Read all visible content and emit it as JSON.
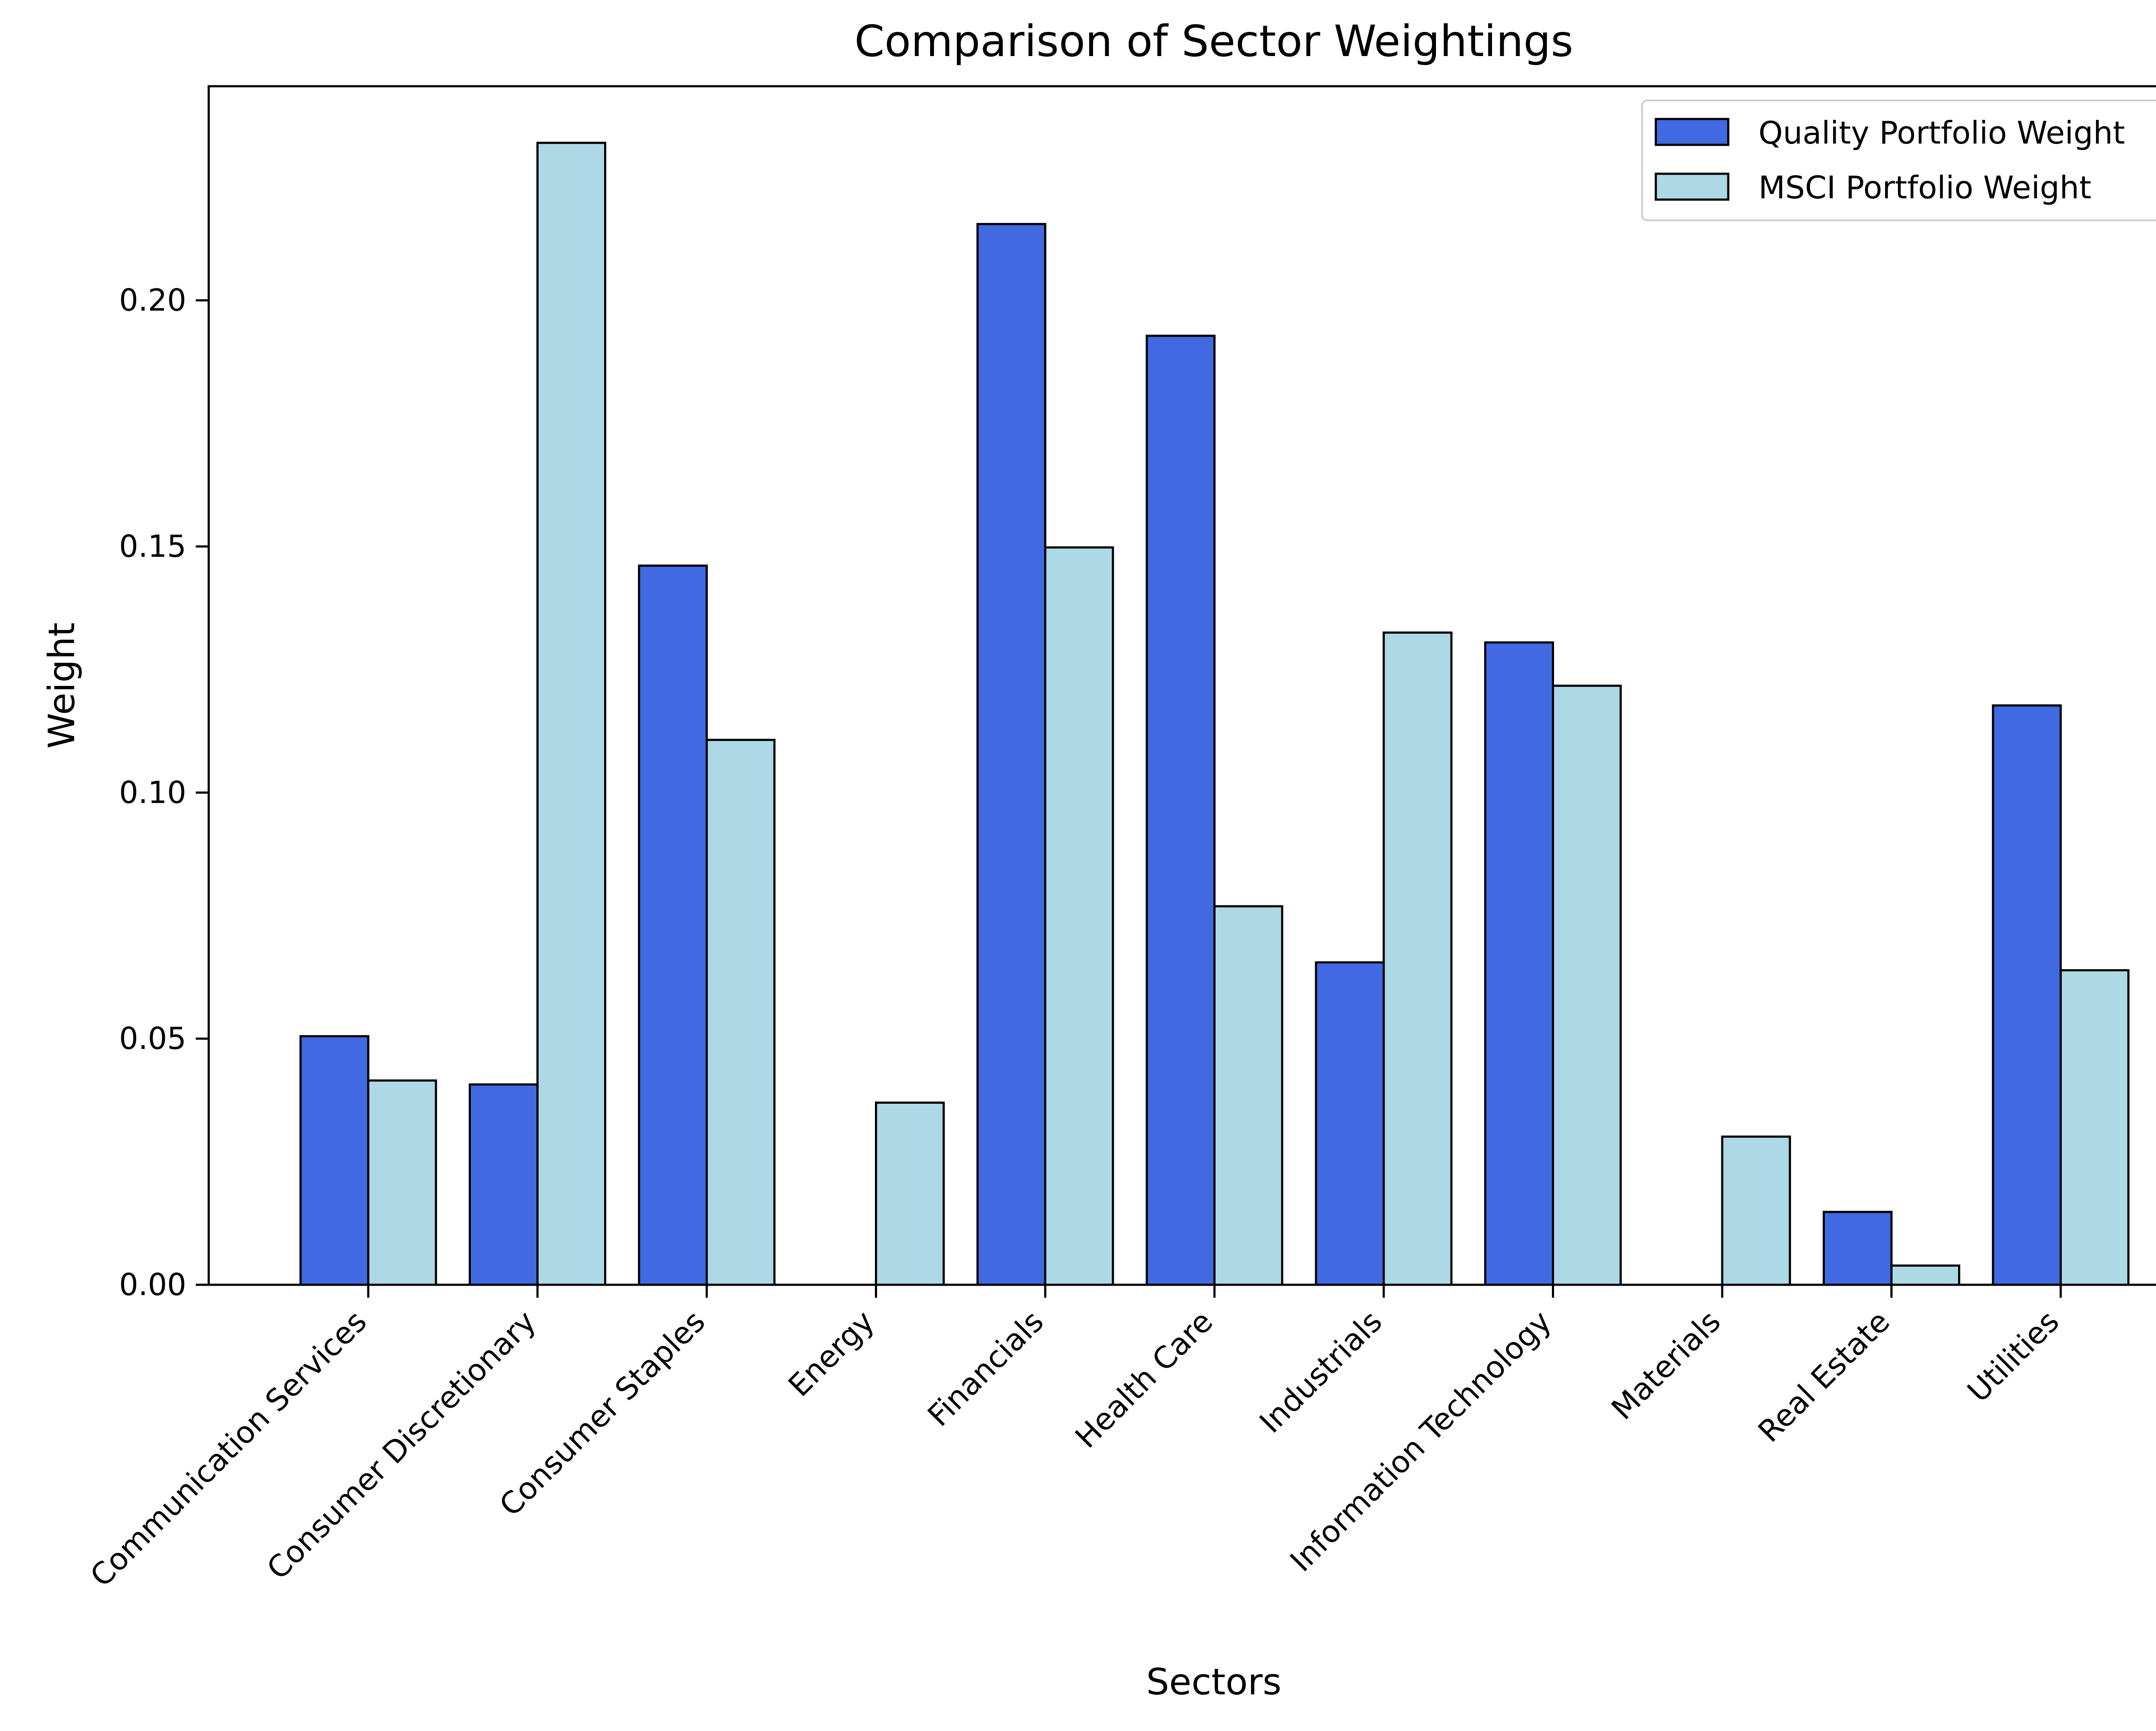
{
  "chart_data": {
    "type": "bar",
    "title": "Comparison of Sector Weightings",
    "xlabel": "Sectors",
    "ylabel": "Weight",
    "ylim": [
      0,
      0.2435
    ],
    "yticks": [
      0.0,
      0.05,
      0.1,
      0.15,
      0.2
    ],
    "ytick_labels": [
      "0.00",
      "0.05",
      "0.10",
      "0.15",
      "0.20"
    ],
    "grid": false,
    "legend_position": "top-right",
    "categories": [
      "Communication Services",
      "Consumer Discretionary",
      "Consumer Staples",
      "Energy",
      "Financials",
      "Health Care",
      "Industrials",
      "Information Technology",
      "Materials",
      "Real Estate",
      "Utilities"
    ],
    "series": [
      {
        "name": "Quality Portfolio Weight",
        "color": "#4169e1",
        "values": [
          0.0505,
          0.0407,
          0.1461,
          0.0,
          0.2155,
          0.1928,
          0.0655,
          0.1305,
          0.0,
          0.0148,
          0.1177
        ]
      },
      {
        "name": "MSCI Portfolio Weight",
        "color": "#add8e6",
        "values": [
          0.0415,
          0.232,
          0.1107,
          0.037,
          0.1498,
          0.0769,
          0.1325,
          0.1217,
          0.0301,
          0.0039,
          0.0639
        ]
      }
    ]
  }
}
